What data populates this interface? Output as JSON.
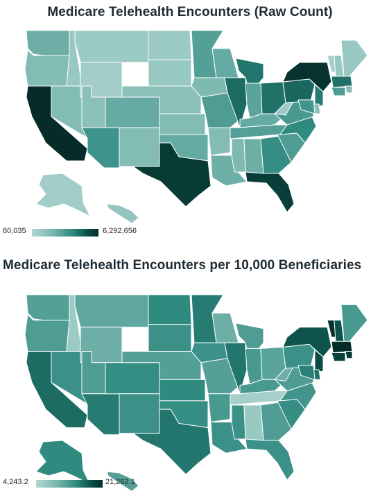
{
  "maps": [
    {
      "title": "Medicare Telehealth Encounters (Raw Count)",
      "legend": {
        "min": "60,035",
        "max": "6,292,656"
      },
      "color_scale": [
        "#b2d6d2",
        "#7cb8b1",
        "#2f8a80",
        "#0a4b45",
        "#052c29"
      ],
      "states": {
        "WA": 0.3,
        "OR": 0.22,
        "CA": 1.0,
        "ID": 0.12,
        "NV": 0.22,
        "MT": 0.1,
        "WY": 0.08,
        "UT": 0.18,
        "AZ": 0.45,
        "CO": 0.32,
        "NM": 0.22,
        "ND": 0.1,
        "SD": 0.12,
        "NE": 0.18,
        "KS": 0.22,
        "OK": 0.32,
        "TX": 0.88,
        "MN": 0.38,
        "IA": 0.24,
        "MO": 0.4,
        "AR": 0.22,
        "LA": 0.3,
        "WI": 0.32,
        "IL": 0.62,
        "MI": 0.58,
        "IN": 0.36,
        "OH": 0.6,
        "KY": 0.32,
        "TN": 0.38,
        "MS": 0.24,
        "AL": 0.3,
        "GA": 0.48,
        "FL": 0.86,
        "SC": 0.4,
        "NC": 0.5,
        "VA": 0.42,
        "WV": 0.1,
        "PA": 0.64,
        "NY": 0.94,
        "VT": 0.06,
        "NH": 0.12,
        "ME": 0.12,
        "MA": 0.6,
        "RI": 0.2,
        "CT": 0.4,
        "NJ": 0.56,
        "DE": 0.18,
        "MD": 0.44,
        "AK": 0.08,
        "HI": 0.14
      }
    },
    {
      "title": "Medicare Telehealth Encounters per 10,000 Beneficiaries",
      "legend": {
        "min": "4,243.2",
        "max": "21,262.1"
      },
      "color_scale": [
        "#b2d6d2",
        "#7cb8b1",
        "#2f8a80",
        "#0a4b45",
        "#052c29"
      ],
      "states": {
        "WA": 0.38,
        "OR": 0.4,
        "CA": 0.62,
        "ID": 0.1,
        "NV": 0.46,
        "MT": 0.34,
        "WY": 0.3,
        "UT": 0.4,
        "AZ": 0.56,
        "CO": 0.48,
        "NM": 0.46,
        "ND": 0.5,
        "SD": 0.46,
        "NE": 0.38,
        "KS": 0.5,
        "OK": 0.48,
        "TX": 0.58,
        "MN": 0.56,
        "IA": 0.46,
        "MO": 0.38,
        "AR": 0.42,
        "LA": 0.46,
        "WI": 0.3,
        "IL": 0.58,
        "MI": 0.4,
        "IN": 0.42,
        "OH": 0.36,
        "KY": 0.42,
        "TN": 0.06,
        "MS": 0.46,
        "AL": 0.12,
        "GA": 0.4,
        "FL": 0.46,
        "SC": 0.48,
        "NC": 0.44,
        "VA": 0.4,
        "WV": 0.3,
        "PA": 0.46,
        "NY": 0.72,
        "VT": 0.94,
        "NH": 0.72,
        "ME": 0.42,
        "MA": 1.0,
        "RI": 0.9,
        "CT": 0.82,
        "NJ": 0.76,
        "DE": 0.6,
        "MD": 0.54,
        "AK": 0.5,
        "HI": 0.38
      }
    }
  ]
}
